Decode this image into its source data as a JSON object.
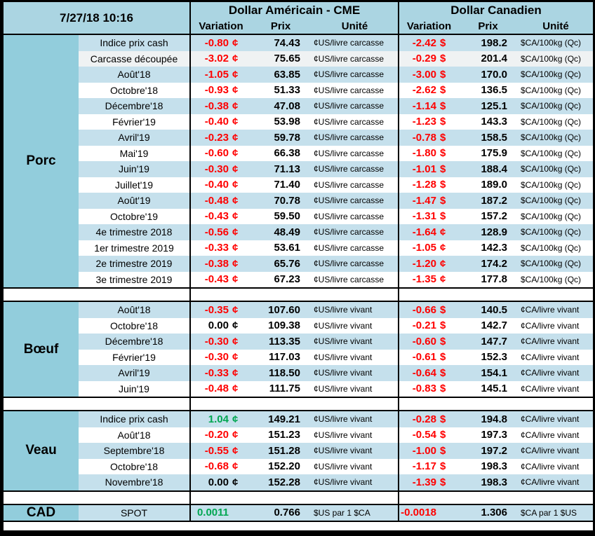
{
  "timestamp": "7/27/18 10:16",
  "header": {
    "us_group": "Dollar Américain - CME",
    "ca_group": "Dollar Canadien",
    "columns": [
      "Variation",
      "Prix",
      "Unité"
    ]
  },
  "colors": {
    "header_bg": "#ABD5E2",
    "section_bg": "#92CDDC",
    "stripe_bg": "#C5E0EC",
    "gray_row": "#EFF2F3",
    "negative": "#FF0000",
    "positive": "#00A651",
    "neutral": "#000000"
  },
  "sections": [
    {
      "id": "porc",
      "label": "Porc",
      "rows": [
        {
          "label": "Indice prix cash",
          "us_var": "-0.80",
          "us_sym": "¢",
          "us_price": "74.43",
          "us_unit": "¢US/livre carcasse",
          "ca_var": "-2.42",
          "ca_sym": "$",
          "ca_price": "198.2",
          "ca_unit": "$CA/100kg (Qc)"
        },
        {
          "label": "Carcasse découpée",
          "us_var": "-3.02",
          "us_sym": "¢",
          "us_price": "75.65",
          "us_unit": "¢US/livre carcasse",
          "ca_var": "-0.29",
          "ca_sym": "$",
          "ca_price": "201.4",
          "ca_unit": "$CA/100kg (Qc)",
          "shade": "gray"
        },
        {
          "label": "Août'18",
          "us_var": "-1.05",
          "us_sym": "¢",
          "us_price": "63.85",
          "us_unit": "¢US/livre carcasse",
          "ca_var": "-3.00",
          "ca_sym": "$",
          "ca_price": "170.0",
          "ca_unit": "$CA/100kg (Qc)"
        },
        {
          "label": "Octobre'18",
          "us_var": "-0.93",
          "us_sym": "¢",
          "us_price": "51.33",
          "us_unit": "¢US/livre carcasse",
          "ca_var": "-2.62",
          "ca_sym": "$",
          "ca_price": "136.5",
          "ca_unit": "$CA/100kg (Qc)"
        },
        {
          "label": "Décembre'18",
          "us_var": "-0.38",
          "us_sym": "¢",
          "us_price": "47.08",
          "us_unit": "¢US/livre carcasse",
          "ca_var": "-1.14",
          "ca_sym": "$",
          "ca_price": "125.1",
          "ca_unit": "$CA/100kg (Qc)"
        },
        {
          "label": "Février'19",
          "us_var": "-0.40",
          "us_sym": "¢",
          "us_price": "53.98",
          "us_unit": "¢US/livre carcasse",
          "ca_var": "-1.23",
          "ca_sym": "$",
          "ca_price": "143.3",
          "ca_unit": "$CA/100kg (Qc)"
        },
        {
          "label": "Avril'19",
          "us_var": "-0.23",
          "us_sym": "¢",
          "us_price": "59.78",
          "us_unit": "¢US/livre carcasse",
          "ca_var": "-0.78",
          "ca_sym": "$",
          "ca_price": "158.5",
          "ca_unit": "$CA/100kg (Qc)"
        },
        {
          "label": "Mai'19",
          "us_var": "-0.60",
          "us_sym": "¢",
          "us_price": "66.38",
          "us_unit": "¢US/livre carcasse",
          "ca_var": "-1.80",
          "ca_sym": "$",
          "ca_price": "175.9",
          "ca_unit": "$CA/100kg (Qc)"
        },
        {
          "label": "Juin'19",
          "us_var": "-0.30",
          "us_sym": "¢",
          "us_price": "71.13",
          "us_unit": "¢US/livre carcasse",
          "ca_var": "-1.01",
          "ca_sym": "$",
          "ca_price": "188.4",
          "ca_unit": "$CA/100kg (Qc)"
        },
        {
          "label": "Juillet'19",
          "us_var": "-0.40",
          "us_sym": "¢",
          "us_price": "71.40",
          "us_unit": "¢US/livre carcasse",
          "ca_var": "-1.28",
          "ca_sym": "$",
          "ca_price": "189.0",
          "ca_unit": "$CA/100kg (Qc)"
        },
        {
          "label": "Août'19",
          "us_var": "-0.48",
          "us_sym": "¢",
          "us_price": "70.78",
          "us_unit": "¢US/livre carcasse",
          "ca_var": "-1.47",
          "ca_sym": "$",
          "ca_price": "187.2",
          "ca_unit": "$CA/100kg (Qc)"
        },
        {
          "label": "Octobre'19",
          "us_var": "-0.43",
          "us_sym": "¢",
          "us_price": "59.50",
          "us_unit": "¢US/livre carcasse",
          "ca_var": "-1.31",
          "ca_sym": "$",
          "ca_price": "157.2",
          "ca_unit": "$CA/100kg (Qc)"
        },
        {
          "label": "4e trimestre 2018",
          "us_var": "-0.56",
          "us_sym": "¢",
          "us_price": "48.49",
          "us_unit": "¢US/livre carcasse",
          "ca_var": "-1.64",
          "ca_sym": "¢",
          "ca_price": "128.9",
          "ca_unit": "$CA/100kg (Qc)"
        },
        {
          "label": "1er trimestre 2019",
          "us_var": "-0.33",
          "us_sym": "¢",
          "us_price": "53.61",
          "us_unit": "¢US/livre carcasse",
          "ca_var": "-1.05",
          "ca_sym": "¢",
          "ca_price": "142.3",
          "ca_unit": "$CA/100kg (Qc)"
        },
        {
          "label": "2e trimestre 2019",
          "us_var": "-0.38",
          "us_sym": "¢",
          "us_price": "65.76",
          "us_unit": "¢US/livre carcasse",
          "ca_var": "-1.20",
          "ca_sym": "¢",
          "ca_price": "174.2",
          "ca_unit": "$CA/100kg (Qc)"
        },
        {
          "label": "3e trimestre 2019",
          "us_var": "-0.43",
          "us_sym": "¢",
          "us_price": "67.23",
          "us_unit": "¢US/livre carcasse",
          "ca_var": "-1.35",
          "ca_sym": "¢",
          "ca_price": "177.8",
          "ca_unit": "$CA/100kg (Qc)"
        }
      ]
    },
    {
      "id": "boeuf",
      "label": "Bœuf",
      "rows": [
        {
          "label": "Août'18",
          "us_var": "-0.35",
          "us_sym": "¢",
          "us_price": "107.60",
          "us_unit": "¢US/livre vivant",
          "ca_var": "-0.66",
          "ca_sym": "$",
          "ca_price": "140.5",
          "ca_unit": "¢CA/livre vivant"
        },
        {
          "label": "Octobre'18",
          "us_var": "0.00",
          "us_sym": "¢",
          "us_price": "109.38",
          "us_unit": "¢US/livre vivant",
          "ca_var": "-0.21",
          "ca_sym": "$",
          "ca_price": "142.7",
          "ca_unit": "¢CA/livre vivant"
        },
        {
          "label": "Décembre'18",
          "us_var": "-0.30",
          "us_sym": "¢",
          "us_price": "113.35",
          "us_unit": "¢US/livre vivant",
          "ca_var": "-0.60",
          "ca_sym": "$",
          "ca_price": "147.7",
          "ca_unit": "¢CA/livre vivant"
        },
        {
          "label": "Février'19",
          "us_var": "-0.30",
          "us_sym": "¢",
          "us_price": "117.03",
          "us_unit": "¢US/livre vivant",
          "ca_var": "-0.61",
          "ca_sym": "$",
          "ca_price": "152.3",
          "ca_unit": "¢CA/livre vivant"
        },
        {
          "label": "Avril'19",
          "us_var": "-0.33",
          "us_sym": "¢",
          "us_price": "118.50",
          "us_unit": "¢US/livre vivant",
          "ca_var": "-0.64",
          "ca_sym": "$",
          "ca_price": "154.1",
          "ca_unit": "¢CA/livre vivant"
        },
        {
          "label": "Juin'19",
          "us_var": "-0.48",
          "us_sym": "¢",
          "us_price": "111.75",
          "us_unit": "¢US/livre vivant",
          "ca_var": "-0.83",
          "ca_sym": "$",
          "ca_price": "145.1",
          "ca_unit": "¢CA/livre vivant"
        }
      ]
    },
    {
      "id": "veau",
      "label": "Veau",
      "rows": [
        {
          "label": "Indice prix cash",
          "us_var": "1.04",
          "us_sym": "¢",
          "us_price": "149.21",
          "us_unit": "¢US/livre vivant",
          "ca_var": "-0.28",
          "ca_sym": "$",
          "ca_price": "194.8",
          "ca_unit": "¢CA/livre vivant"
        },
        {
          "label": "Août'18",
          "us_var": "-0.20",
          "us_sym": "¢",
          "us_price": "151.23",
          "us_unit": "¢US/livre vivant",
          "ca_var": "-0.54",
          "ca_sym": "$",
          "ca_price": "197.3",
          "ca_unit": "¢CA/livre vivant"
        },
        {
          "label": "Septembre'18",
          "us_var": "-0.55",
          "us_sym": "¢",
          "us_price": "151.28",
          "us_unit": "¢US/livre vivant",
          "ca_var": "-1.00",
          "ca_sym": "$",
          "ca_price": "197.2",
          "ca_unit": "¢CA/livre vivant"
        },
        {
          "label": "Octobre'18",
          "us_var": "-0.68",
          "us_sym": "¢",
          "us_price": "152.20",
          "us_unit": "¢US/livre vivant",
          "ca_var": "-1.17",
          "ca_sym": "$",
          "ca_price": "198.3",
          "ca_unit": "¢CA/livre vivant"
        },
        {
          "label": "Novembre'18",
          "us_var": "0.00",
          "us_sym": "¢",
          "us_price": "152.28",
          "us_unit": "¢US/livre vivant",
          "ca_var": "-1.39",
          "ca_sym": "$",
          "ca_price": "198.3",
          "ca_unit": "¢CA/livre vivant"
        }
      ]
    },
    {
      "id": "cad",
      "label": "CAD",
      "spot": true,
      "rows": [
        {
          "label": "SPOT",
          "us_var": "0.0011",
          "us_sym": "",
          "us_price": "0.766",
          "us_unit": "$US par 1 $CA",
          "ca_var": "-0.0018",
          "ca_sym": "",
          "ca_price": "1.306",
          "ca_unit": "$CA par 1 $US"
        }
      ]
    }
  ]
}
